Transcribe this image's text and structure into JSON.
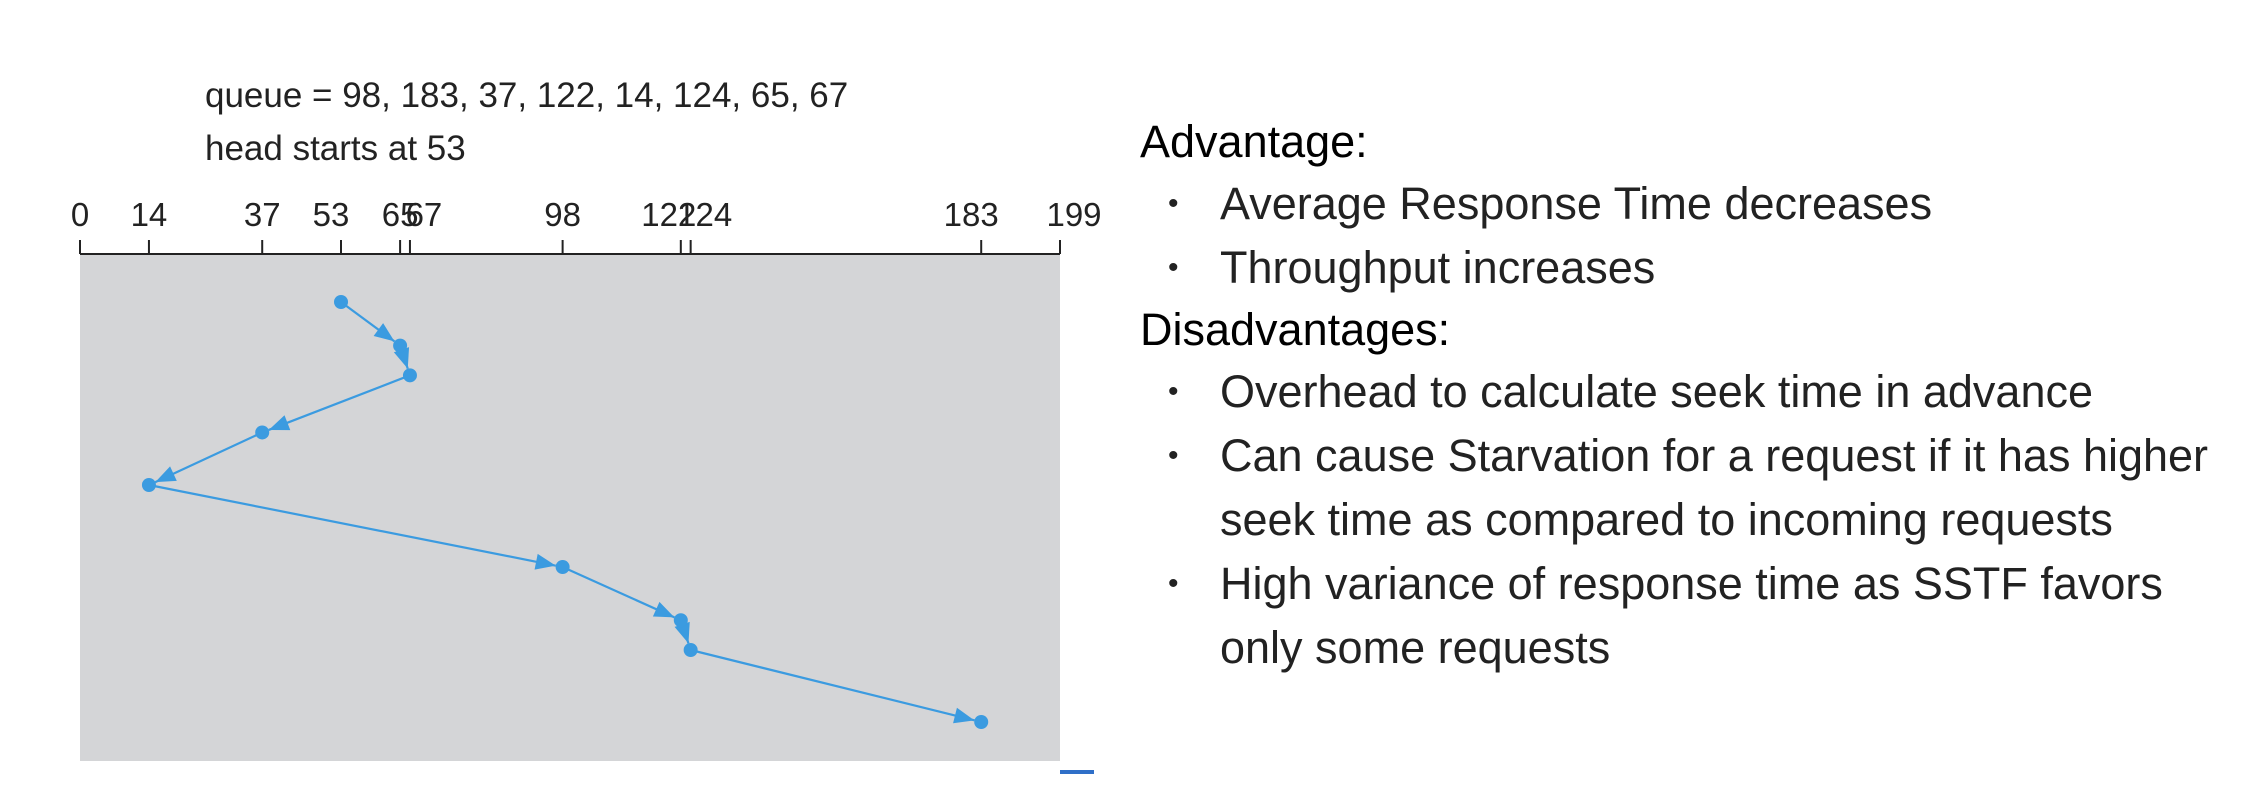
{
  "diagram": {
    "queue_text": "queue = 98, 183, 37, 122, 14, 124, 65, 67",
    "head_text": "head starts at 53",
    "max_cylinder": 199,
    "ticks": [
      "0",
      "14",
      "37",
      "53",
      "65",
      "67",
      "98",
      "122",
      "124",
      "183",
      "199"
    ],
    "tick_values": [
      0,
      14,
      37,
      53,
      65,
      67,
      98,
      122,
      124,
      183,
      199
    ],
    "service_order": [
      53,
      65,
      67,
      37,
      14,
      98,
      122,
      124,
      183
    ],
    "colors": {
      "background": "#d4d5d7",
      "path": "#3b9be0",
      "axis": "#222222"
    }
  },
  "notes": {
    "advantage_heading": "Advantage:",
    "advantages": [
      "Average Response Time decreases",
      "Throughput increases"
    ],
    "disadvantage_heading": "Disadvantages:",
    "disadvantages": [
      "Overhead to calculate seek time in advance",
      "Can cause Starvation for a request if it has higher seek time as compared to incoming requests",
      "High variance of response time as SSTF favors only some requests"
    ]
  }
}
